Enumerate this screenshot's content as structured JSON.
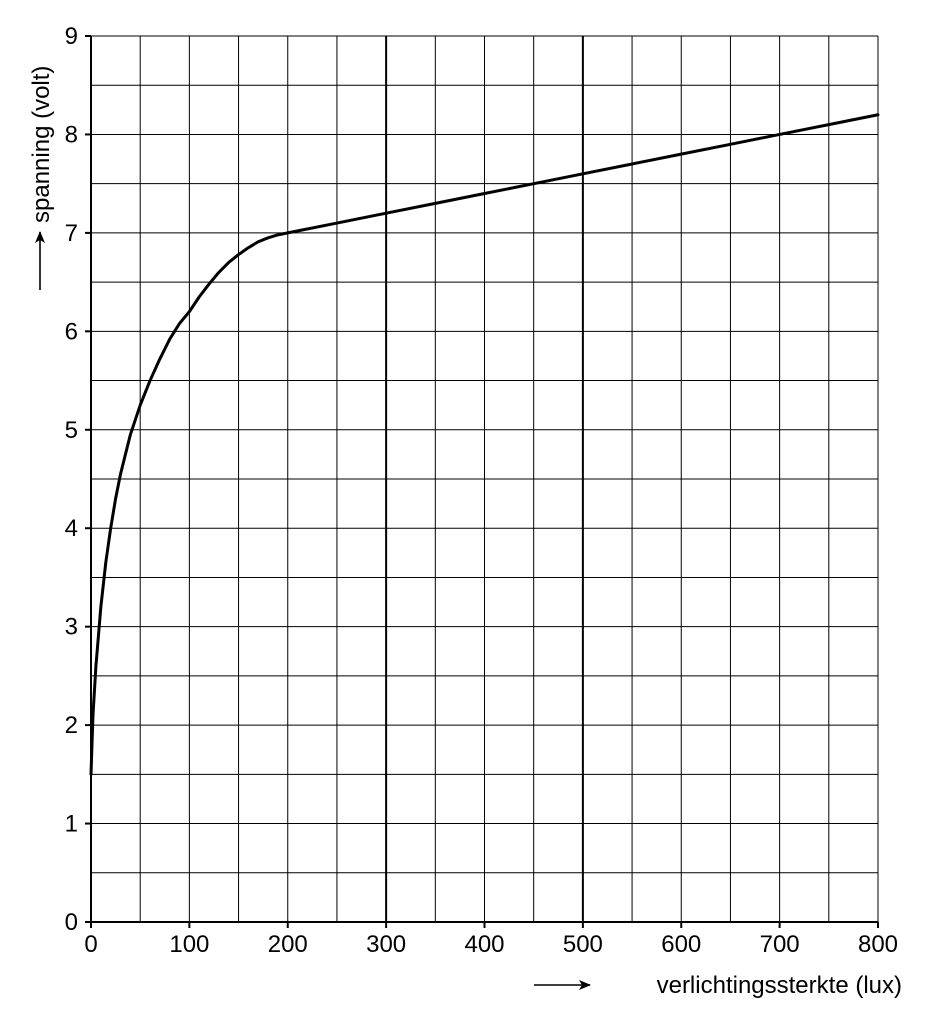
{
  "chart_data": {
    "type": "line",
    "title": "",
    "xlabel": "verlichtingssterkte (lux)",
    "ylabel": "spanning (volt)",
    "xlim": [
      0,
      800
    ],
    "ylim": [
      0,
      9
    ],
    "x_ticks": [
      0,
      100,
      200,
      300,
      400,
      500,
      600,
      700,
      800
    ],
    "y_ticks": [
      0,
      1,
      2,
      3,
      4,
      5,
      6,
      7,
      8,
      9
    ],
    "x_tick_labels": [
      "0",
      "100",
      "200",
      "300",
      "400",
      "500",
      "600",
      "700",
      "800"
    ],
    "y_tick_labels": [
      "0",
      "1",
      "2",
      "3",
      "4",
      "5",
      "6",
      "7",
      "8",
      "9"
    ],
    "grid": true,
    "x_minor_step": 50,
    "y_minor_step": 0.5,
    "emphasized_gridlines_x": [
      300,
      500
    ],
    "legend": "none",
    "colors": {
      "line": "#000000",
      "grid": "#000000",
      "background": "#ffffff"
    },
    "series": [
      {
        "x": [
          0,
          2,
          5,
          10,
          15,
          20,
          25,
          30,
          40,
          50,
          60,
          70,
          80,
          90,
          100,
          110,
          120,
          130,
          140,
          150,
          160,
          170,
          180,
          190,
          200,
          250,
          300,
          350,
          400,
          450,
          500,
          550,
          600,
          650,
          700,
          750,
          800
        ],
        "values": [
          1.5,
          2.1,
          2.6,
          3.2,
          3.65,
          4.0,
          4.3,
          4.55,
          4.95,
          5.25,
          5.5,
          5.72,
          5.92,
          6.08,
          6.2,
          6.35,
          6.48,
          6.6,
          6.7,
          6.78,
          6.85,
          6.91,
          6.95,
          6.98,
          7.0,
          7.1,
          7.2,
          7.3,
          7.4,
          7.5,
          7.6,
          7.7,
          7.8,
          7.9,
          8.0,
          8.1,
          8.2
        ]
      }
    ]
  }
}
